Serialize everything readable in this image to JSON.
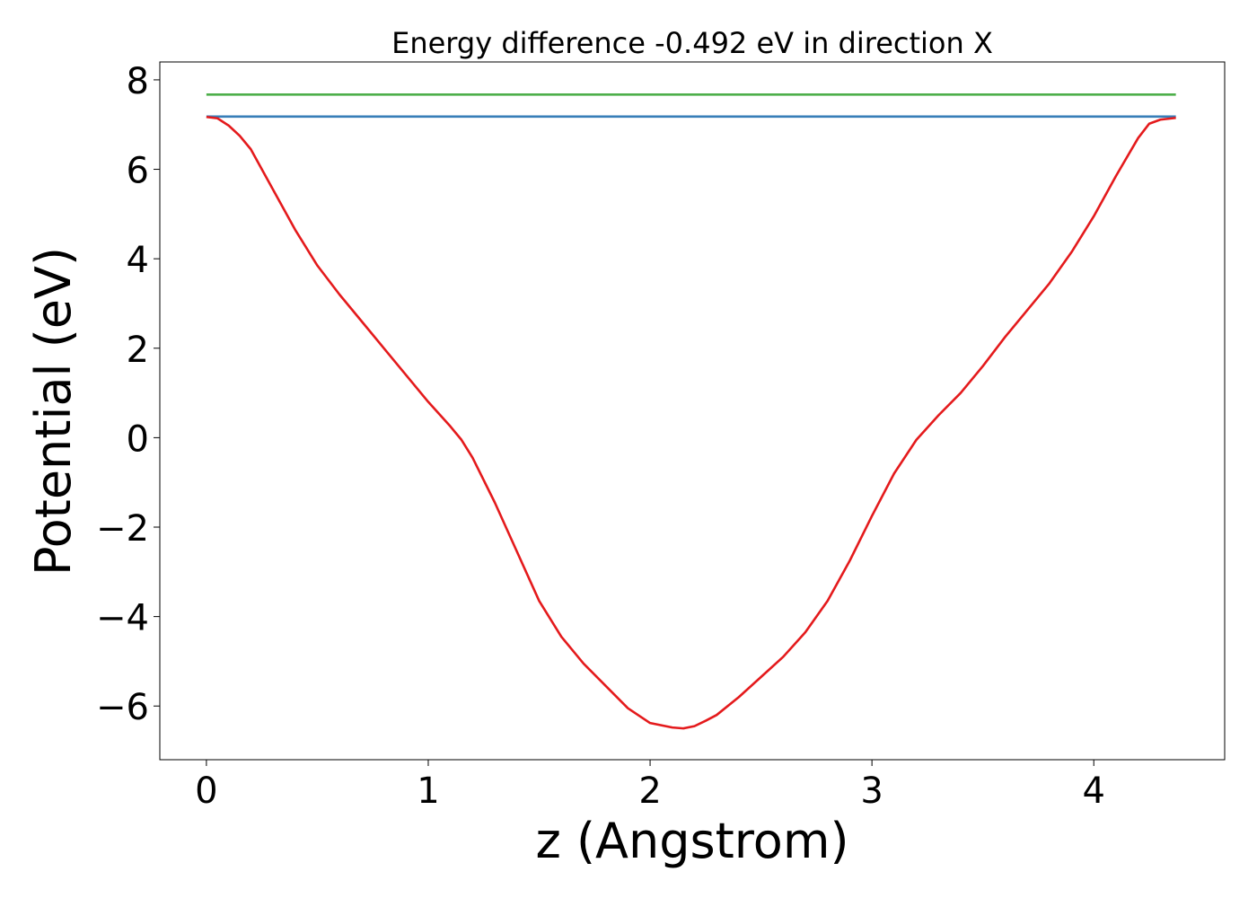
{
  "chart_data": {
    "type": "line",
    "title": "Energy difference -0.492 eV in direction X",
    "xlabel": "z (Angstrom)",
    "ylabel": "Potential (eV)",
    "xlim": [
      -0.21,
      4.59
    ],
    "ylim": [
      -7.2,
      8.4
    ],
    "xticks": [
      {
        "value": 0,
        "label": "0"
      },
      {
        "value": 1,
        "label": "1"
      },
      {
        "value": 2,
        "label": "2"
      },
      {
        "value": 3,
        "label": "3"
      },
      {
        "value": 4,
        "label": "4"
      }
    ],
    "yticks": [
      {
        "value": -6,
        "label": "−6"
      },
      {
        "value": -4,
        "label": "−4"
      },
      {
        "value": -2,
        "label": "−2"
      },
      {
        "value": 0,
        "label": "0"
      },
      {
        "value": 2,
        "label": "2"
      },
      {
        "value": 4,
        "label": "4"
      },
      {
        "value": 6,
        "label": "6"
      },
      {
        "value": 8,
        "label": "8"
      }
    ],
    "grid": false,
    "legend": "none",
    "series": [
      {
        "color": "#4daf4a",
        "x": [
          0,
          4.37
        ],
        "y": [
          7.67,
          7.67
        ]
      },
      {
        "color": "#377eb8",
        "x": [
          0,
          4.37
        ],
        "y": [
          7.18,
          7.18
        ]
      },
      {
        "color": "#e41a1c",
        "x": [
          0,
          0.05,
          0.1,
          0.15,
          0.2,
          0.3,
          0.4,
          0.5,
          0.6,
          0.7,
          0.8,
          0.9,
          1.0,
          1.1,
          1.15,
          1.2,
          1.3,
          1.4,
          1.5,
          1.6,
          1.7,
          1.8,
          1.9,
          2.0,
          2.1,
          2.15,
          2.2,
          2.25,
          2.3,
          2.4,
          2.5,
          2.6,
          2.7,
          2.8,
          2.9,
          3.0,
          3.1,
          3.2,
          3.3,
          3.4,
          3.5,
          3.6,
          3.7,
          3.8,
          3.9,
          4.0,
          4.1,
          4.2,
          4.25,
          4.3,
          4.37
        ],
        "y": [
          7.17,
          7.14,
          6.98,
          6.75,
          6.45,
          5.55,
          4.65,
          3.85,
          3.2,
          2.6,
          2.0,
          1.4,
          0.8,
          0.25,
          -0.05,
          -0.45,
          -1.45,
          -2.55,
          -3.65,
          -4.45,
          -5.05,
          -5.55,
          -6.05,
          -6.38,
          -6.48,
          -6.5,
          -6.45,
          -6.33,
          -6.2,
          -5.8,
          -5.35,
          -4.9,
          -4.35,
          -3.65,
          -2.75,
          -1.75,
          -0.8,
          -0.05,
          0.5,
          1.0,
          1.6,
          2.25,
          2.85,
          3.45,
          4.15,
          4.95,
          5.85,
          6.7,
          7.02,
          7.11,
          7.15
        ]
      }
    ]
  }
}
